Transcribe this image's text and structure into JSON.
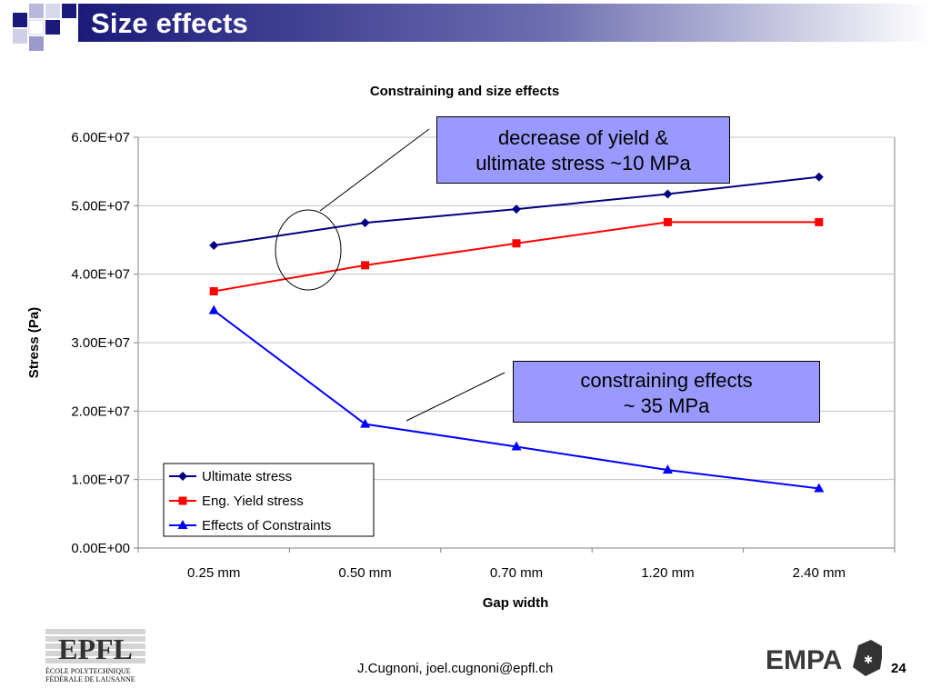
{
  "slide": {
    "title": "Size effects",
    "footer": "J.Cugnoni, joel.cugnoni@epfl.ch",
    "page_number": "24"
  },
  "logos": {
    "epfl": {
      "mark": "EPFL",
      "line1": "ÉCOLE POLYTECHNIQUE",
      "line2": "FÉDÉRALE DE LAUSANNE"
    },
    "empa": {
      "mark": "EMPA"
    }
  },
  "callouts": [
    {
      "lines": [
        "decrease of yield &",
        "ultimate stress ~10 MPa"
      ]
    },
    {
      "lines": [
        "constraining effects",
        "~ 35 MPa"
      ]
    }
  ],
  "colors": {
    "title_bar": "#1a1a7a",
    "callout_fill": "#9999ff",
    "ultimate": "#000080",
    "yield": "#ff0000",
    "constraint": "#0000ff"
  },
  "chart_data": {
    "type": "line",
    "title": "Constraining and size effects",
    "xlabel": "Gap width",
    "ylabel": "Stress (Pa)",
    "categories": [
      "0.25 mm",
      "0.50 mm",
      "0.70 mm",
      "1.20 mm",
      "2.40 mm"
    ],
    "ylim": [
      0,
      60000000
    ],
    "yticks": [
      0,
      10000000,
      20000000,
      30000000,
      40000000,
      50000000,
      60000000
    ],
    "ytick_labels": [
      "0.00E+00",
      "1.00E+07",
      "2.00E+07",
      "3.00E+07",
      "4.00E+07",
      "5.00E+07",
      "6.00E+07"
    ],
    "grid": "horizontal",
    "legend_position": "bottom-left",
    "series": [
      {
        "name": "Ultimate stress",
        "marker": "diamond",
        "color": "#000080",
        "values": [
          44200000,
          47500000,
          49500000,
          51700000,
          54200000
        ]
      },
      {
        "name": "Eng. Yield stress",
        "marker": "square",
        "color": "#ff0000",
        "values": [
          37500000,
          41300000,
          44500000,
          47600000,
          47600000
        ]
      },
      {
        "name": "Effects of Constraints",
        "marker": "triangle",
        "color": "#0000ff",
        "values": [
          34700000,
          18100000,
          14800000,
          11400000,
          8700000
        ]
      }
    ]
  }
}
